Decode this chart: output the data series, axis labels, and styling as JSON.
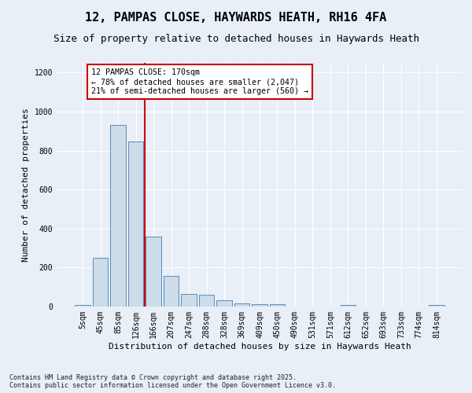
{
  "title_line1": "12, PAMPAS CLOSE, HAYWARDS HEATH, RH16 4FA",
  "title_line2": "Size of property relative to detached houses in Haywards Heath",
  "xlabel": "Distribution of detached houses by size in Haywards Heath",
  "ylabel": "Number of detached properties",
  "footer_line1": "Contains HM Land Registry data © Crown copyright and database right 2025.",
  "footer_line2": "Contains public sector information licensed under the Open Government Licence v3.0.",
  "annotation_line1": "12 PAMPAS CLOSE: 170sqm",
  "annotation_line2": "← 78% of detached houses are smaller (2,047)",
  "annotation_line3": "21% of semi-detached houses are larger (560) →",
  "categories": [
    "5sqm",
    "45sqm",
    "85sqm",
    "126sqm",
    "166sqm",
    "207sqm",
    "247sqm",
    "288sqm",
    "328sqm",
    "369sqm",
    "409sqm",
    "450sqm",
    "490sqm",
    "531sqm",
    "571sqm",
    "612sqm",
    "652sqm",
    "693sqm",
    "733sqm",
    "774sqm",
    "814sqm"
  ],
  "values": [
    10,
    248,
    930,
    848,
    360,
    157,
    65,
    62,
    32,
    18,
    13,
    13,
    0,
    0,
    0,
    10,
    0,
    0,
    0,
    0,
    10
  ],
  "bar_color": "#ccdce8",
  "bar_edge_color": "#5b8db8",
  "redline_color": "#cc0000",
  "redline_index": 4.5,
  "bg_color": "#e8eff7",
  "grid_color": "#ffffff",
  "annotation_box_color": "#ffffff",
  "annotation_box_edge": "#cc0000",
  "ylim": [
    0,
    1250
  ],
  "yticks": [
    0,
    200,
    400,
    600,
    800,
    1000,
    1200
  ],
  "title_fontsize": 11,
  "subtitle_fontsize": 9,
  "tick_fontsize": 7,
  "ylabel_fontsize": 8,
  "xlabel_fontsize": 8
}
